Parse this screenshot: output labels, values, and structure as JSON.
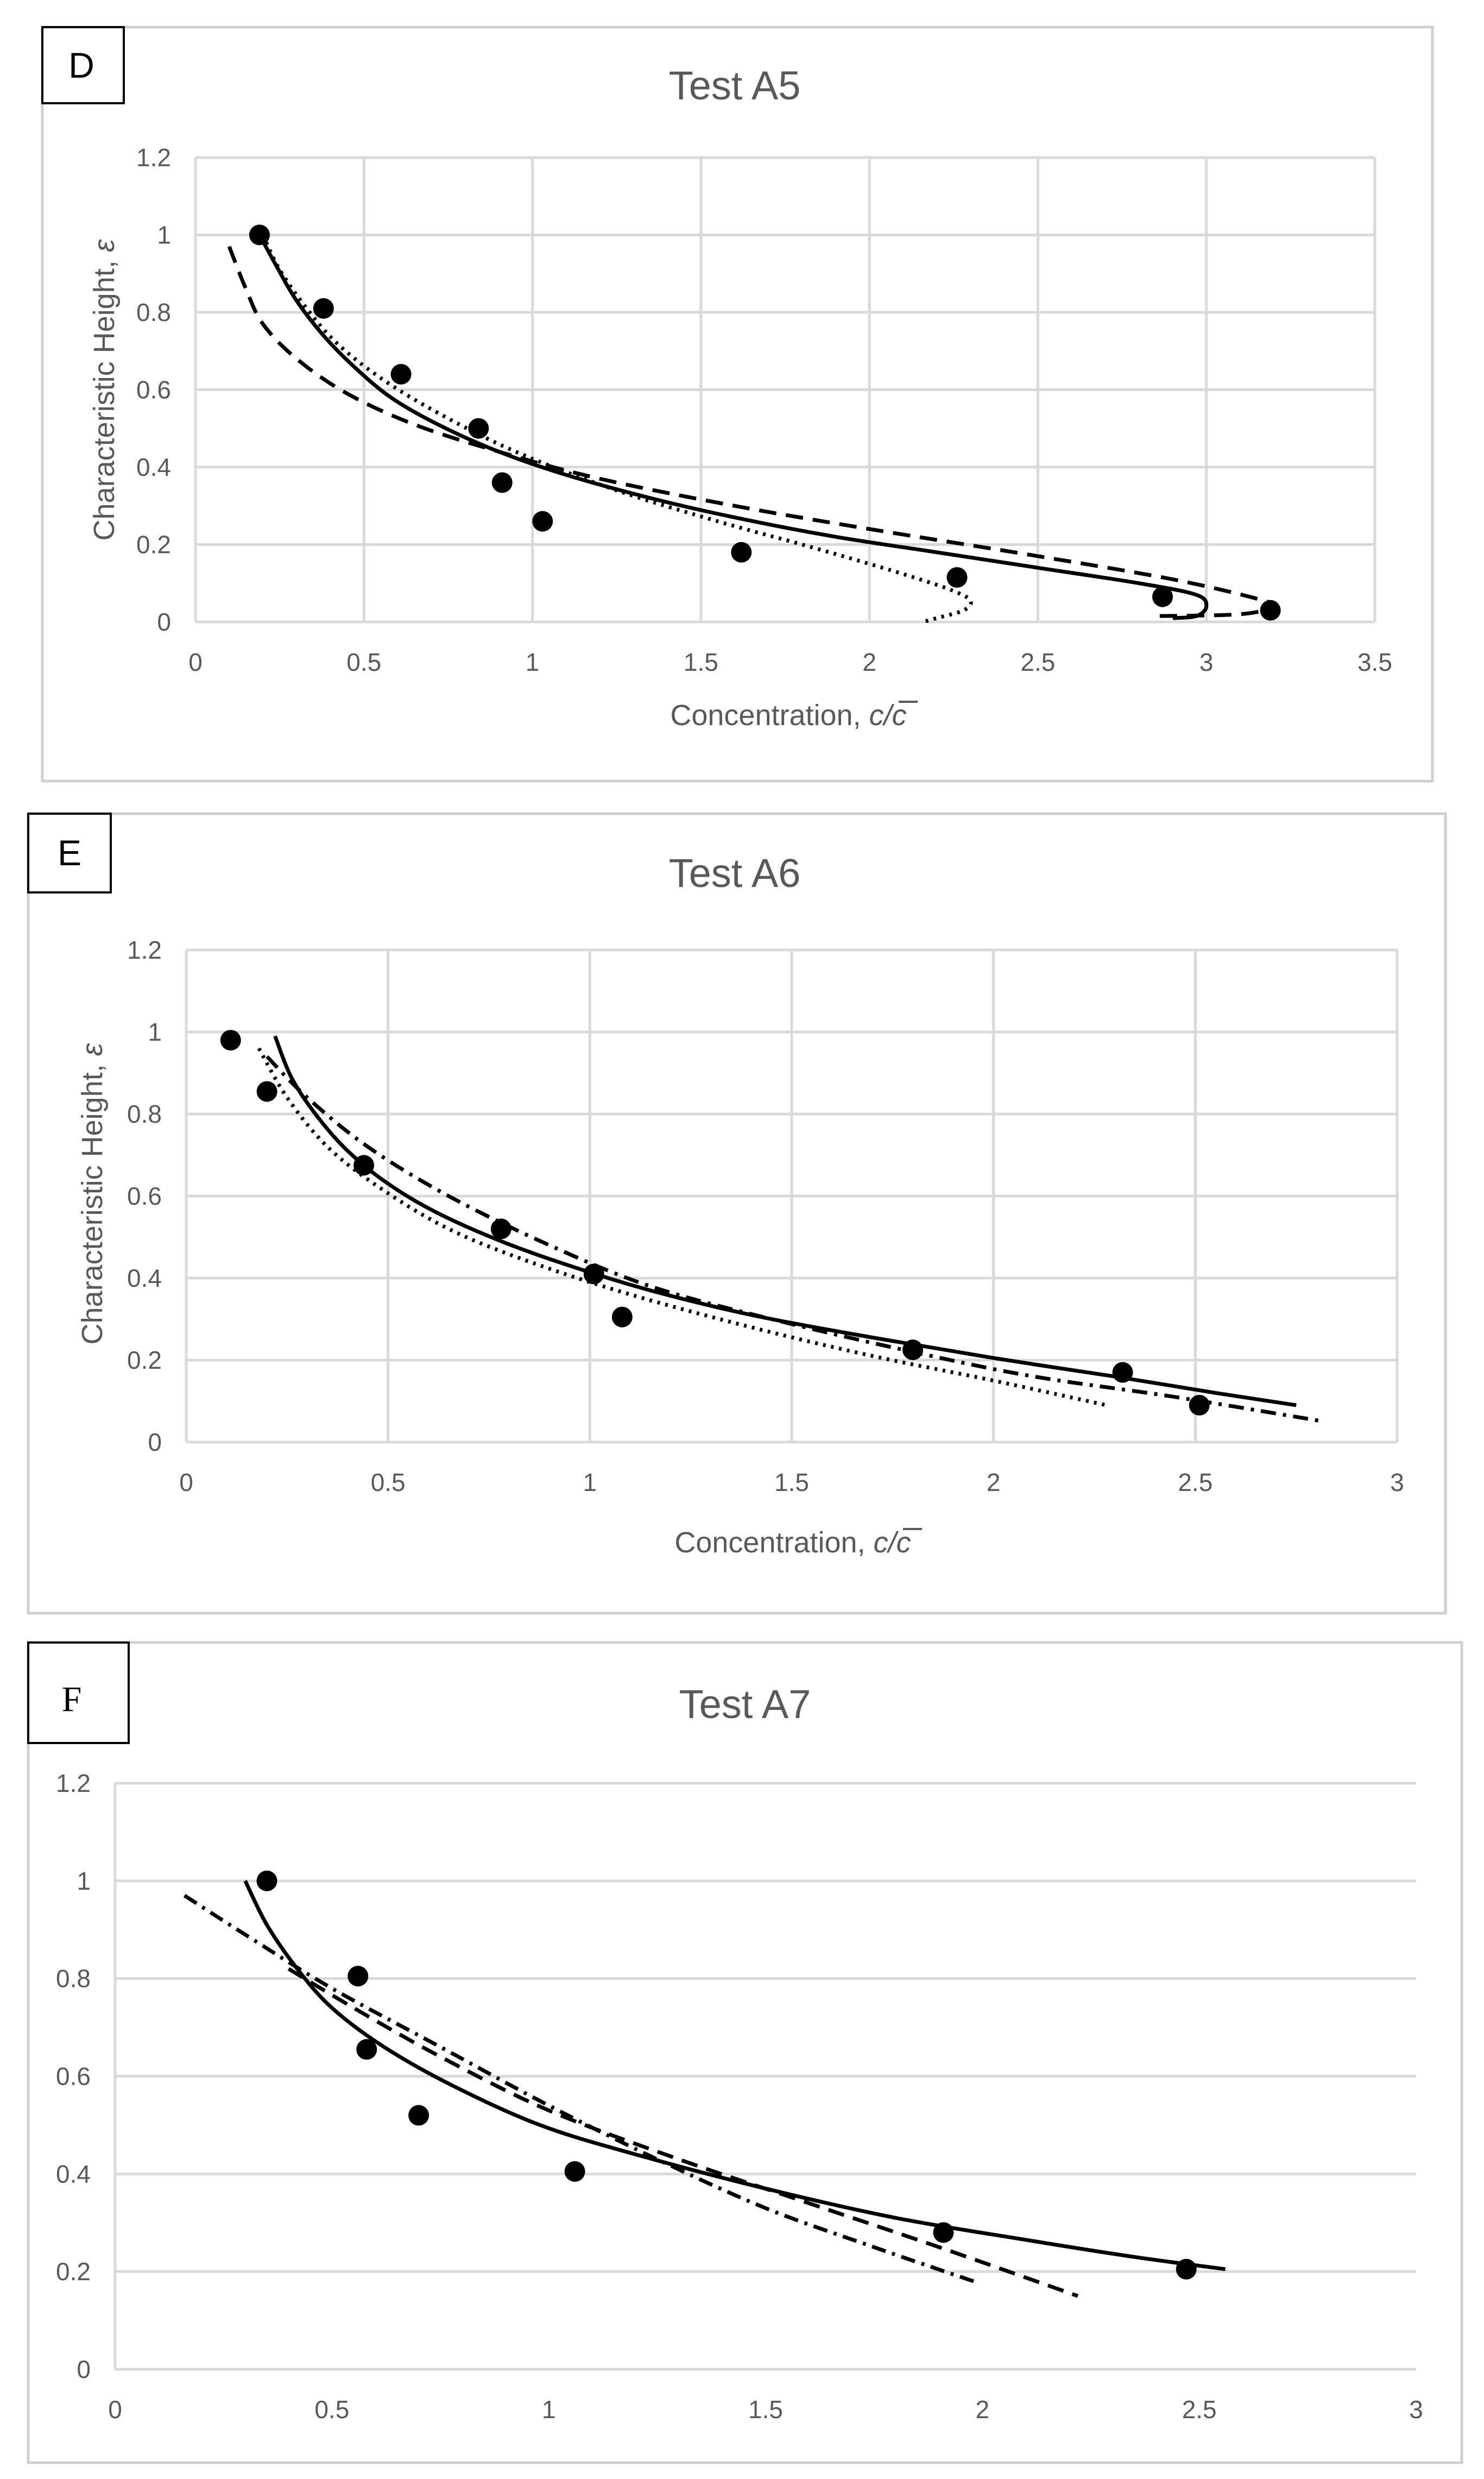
{
  "chart_data": [
    {
      "type": "line",
      "panel_label": "D",
      "title": "Test A5",
      "xlabel": "Concentration, c/c",
      "xlabel_parts": {
        "prefix": "Concentration, ",
        "var": "c/c"
      },
      "ylabel": "Characteristic Height, ε",
      "ylabel_parts": {
        "prefix": "Characteristic Height, ",
        "var": "ε"
      },
      "xlim": [
        0,
        3.5
      ],
      "ylim": [
        0,
        1.2
      ],
      "xticks": [
        0,
        0.5,
        1,
        1.5,
        2,
        2.5,
        3,
        3.5
      ],
      "xtick_labels": [
        "0",
        "0.5",
        "1",
        "1.5",
        "2",
        "2.5",
        "3",
        "3.5"
      ],
      "yticks": [
        0,
        0.2,
        0.4,
        0.6,
        0.8,
        1,
        1.2
      ],
      "ytick_labels": [
        "0",
        "0.2",
        "0.4",
        "0.6",
        "0.8",
        "1",
        "1.2"
      ],
      "grid": true,
      "series": [
        {
          "name": "measured",
          "style": "markers",
          "x": [
            0.19,
            0.38,
            0.61,
            0.84,
            0.91,
            1.03,
            1.62,
            2.26,
            2.87,
            3.19
          ],
          "y": [
            1.0,
            0.81,
            0.64,
            0.5,
            0.36,
            0.26,
            0.18,
            0.115,
            0.065,
            0.03
          ]
        },
        {
          "name": "solid",
          "style": "solid",
          "x": [
            0.19,
            0.24,
            0.3,
            0.38,
            0.47,
            0.58,
            0.72,
            0.9,
            1.1,
            1.35,
            1.6,
            1.9,
            2.2,
            2.5,
            2.8,
            2.97,
            3.0,
            2.97,
            2.9
          ],
          "y": [
            1.0,
            0.92,
            0.83,
            0.74,
            0.66,
            0.58,
            0.51,
            0.44,
            0.38,
            0.32,
            0.27,
            0.22,
            0.18,
            0.14,
            0.1,
            0.07,
            0.04,
            0.015,
            0.01
          ]
        },
        {
          "name": "dashed",
          "style": "dashed",
          "x": [
            0.1,
            0.15,
            0.2,
            0.3,
            0.45,
            0.65,
            0.9,
            1.2,
            1.6,
            2.0,
            2.5,
            2.9,
            3.15,
            3.2,
            3.1,
            2.85
          ],
          "y": [
            0.97,
            0.86,
            0.77,
            0.68,
            0.59,
            0.51,
            0.44,
            0.37,
            0.3,
            0.24,
            0.17,
            0.11,
            0.06,
            0.04,
            0.02,
            0.015
          ]
        },
        {
          "name": "dotted",
          "style": "dotted",
          "x": [
            0.2,
            0.25,
            0.33,
            0.42,
            0.55,
            0.72,
            0.95,
            1.25,
            1.55,
            1.8,
            2.0,
            2.15,
            2.25,
            2.3,
            2.28,
            2.2,
            2.16
          ],
          "y": [
            1.0,
            0.91,
            0.81,
            0.72,
            0.63,
            0.54,
            0.44,
            0.34,
            0.26,
            0.2,
            0.15,
            0.11,
            0.08,
            0.055,
            0.03,
            0.01,
            0.0
          ]
        }
      ]
    },
    {
      "type": "line",
      "panel_label": "E",
      "title": "Test A6",
      "xlabel": "Concentration, c/c",
      "xlabel_parts": {
        "prefix": "Concentration, ",
        "var": "c/c"
      },
      "ylabel": "Characteristic Height, ε",
      "ylabel_parts": {
        "prefix": "Characteristic Height, ",
        "var": "ε"
      },
      "xlim": [
        0,
        3
      ],
      "ylim": [
        0,
        1.2
      ],
      "xticks": [
        0,
        0.5,
        1,
        1.5,
        2,
        2.5,
        3
      ],
      "xtick_labels": [
        "0",
        "0.5",
        "1",
        "1.5",
        "2",
        "2.5",
        "3"
      ],
      "yticks": [
        0,
        0.2,
        0.4,
        0.6,
        0.8,
        1,
        1.2
      ],
      "ytick_labels": [
        "0",
        "0.2",
        "0.4",
        "0.6",
        "0.8",
        "1",
        "1.2"
      ],
      "grid": true,
      "series": [
        {
          "name": "measured",
          "style": "markers",
          "x": [
            0.11,
            0.2,
            0.44,
            0.78,
            1.01,
            1.08,
            1.8,
            2.32,
            2.51
          ],
          "y": [
            0.98,
            0.855,
            0.675,
            0.52,
            0.41,
            0.305,
            0.225,
            0.17,
            0.09
          ]
        },
        {
          "name": "solid",
          "style": "solid",
          "x": [
            0.22,
            0.26,
            0.32,
            0.4,
            0.5,
            0.62,
            0.78,
            0.95,
            1.15,
            1.4,
            1.7,
            2.0,
            2.3,
            2.55,
            2.75
          ],
          "y": [
            0.99,
            0.89,
            0.8,
            0.71,
            0.63,
            0.56,
            0.49,
            0.43,
            0.37,
            0.31,
            0.255,
            0.205,
            0.16,
            0.12,
            0.09
          ]
        },
        {
          "name": "dotted",
          "style": "dotted",
          "x": [
            0.18,
            0.25,
            0.35,
            0.48,
            0.65,
            0.85,
            1.1,
            1.4,
            1.7,
            2.0,
            2.28
          ],
          "y": [
            0.96,
            0.84,
            0.72,
            0.62,
            0.52,
            0.44,
            0.36,
            0.28,
            0.21,
            0.15,
            0.09
          ]
        },
        {
          "name": "dash-dot",
          "style": "dashdot",
          "x": [
            0.2,
            0.3,
            0.45,
            0.65,
            0.9,
            1.15,
            1.45,
            1.8,
            2.1,
            2.45,
            2.82
          ],
          "y": [
            0.94,
            0.84,
            0.72,
            0.6,
            0.48,
            0.38,
            0.3,
            0.22,
            0.16,
            0.11,
            0.05
          ]
        }
      ]
    },
    {
      "type": "line",
      "panel_label": "F",
      "title": "Test A7",
      "xlim": [
        0,
        3
      ],
      "ylim": [
        0,
        1.2
      ],
      "xticks": [
        0,
        0.5,
        1,
        1.5,
        2,
        2.5,
        3
      ],
      "xtick_labels": [
        "0",
        "0.5",
        "1",
        "1.5",
        "2",
        "2.5",
        "3"
      ],
      "yticks": [
        0,
        0.2,
        0.4,
        0.6,
        0.8,
        1,
        1.2
      ],
      "ytick_labels": [
        "0",
        "0.2",
        "0.4",
        "0.6",
        "0.8",
        "1",
        "1.2"
      ],
      "grid": true,
      "series": [
        {
          "name": "measured",
          "style": "markers",
          "x": [
            0.35,
            0.56,
            0.58,
            0.7,
            1.06,
            1.91,
            2.47
          ],
          "y": [
            1.0,
            0.805,
            0.655,
            0.52,
            0.405,
            0.28,
            0.205
          ]
        },
        {
          "name": "solid",
          "style": "solid",
          "x": [
            0.3,
            0.35,
            0.42,
            0.5,
            0.62,
            0.78,
            0.98,
            1.2,
            1.5,
            1.8,
            2.1,
            2.35,
            2.56
          ],
          "y": [
            1.0,
            0.91,
            0.82,
            0.74,
            0.66,
            0.58,
            0.5,
            0.44,
            0.37,
            0.31,
            0.265,
            0.23,
            0.205
          ]
        },
        {
          "name": "dashed",
          "style": "dashed",
          "x": [
            0.4,
            0.55,
            0.75,
            1.0,
            1.3,
            1.6,
            1.9,
            2.22
          ],
          "y": [
            0.82,
            0.74,
            0.64,
            0.53,
            0.43,
            0.34,
            0.25,
            0.15
          ]
        },
        {
          "name": "dash-dot",
          "style": "dashdot",
          "x": [
            0.16,
            0.3,
            0.5,
            0.75,
            1.0,
            1.25,
            1.5,
            1.75,
            1.98
          ],
          "y": [
            0.97,
            0.89,
            0.78,
            0.66,
            0.54,
            0.43,
            0.33,
            0.25,
            0.18
          ]
        }
      ]
    }
  ]
}
